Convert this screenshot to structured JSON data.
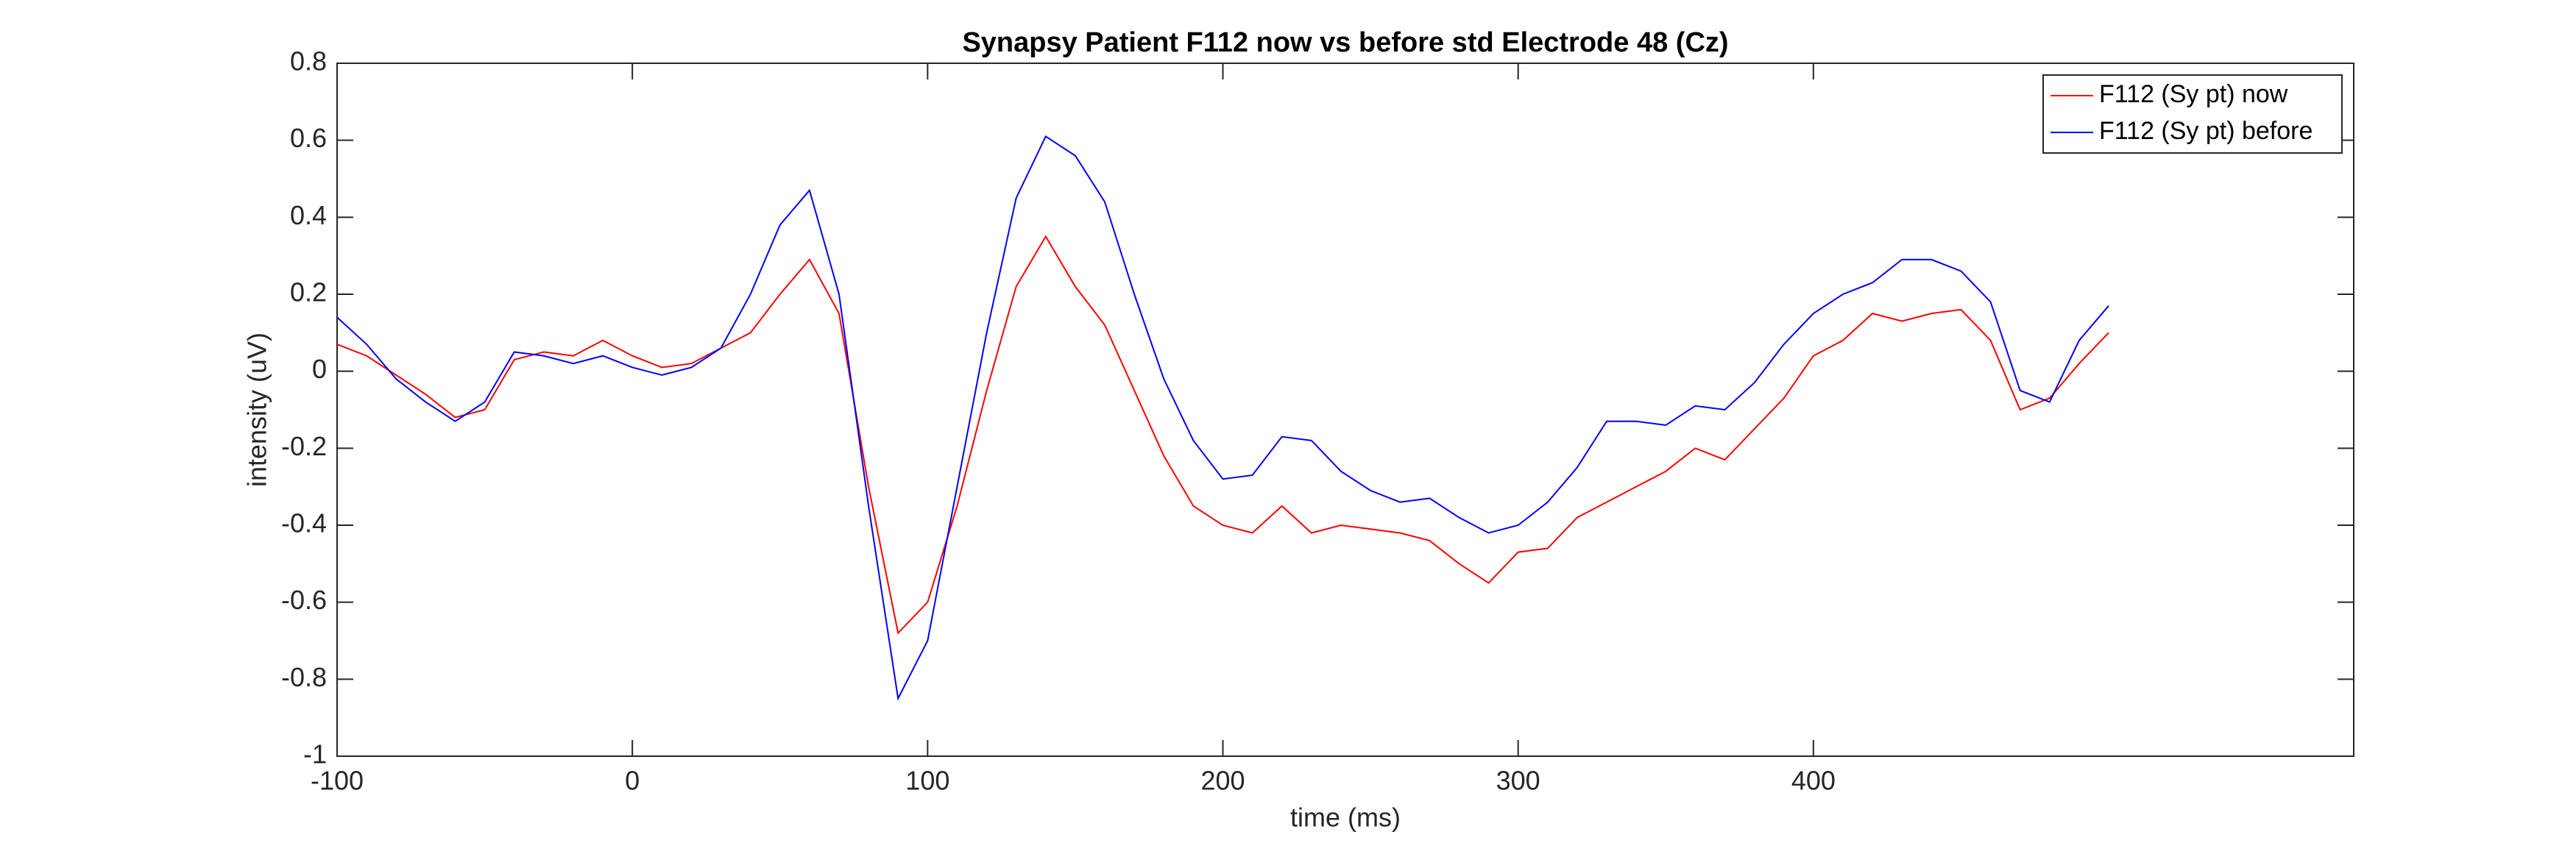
{
  "chart_data": {
    "type": "line",
    "title": "Synapsy Patient F112 now vs before std Electrode 48 (Cz)",
    "xlabel": "time (ms)",
    "ylabel": "intensity (uV)",
    "x": [
      -100,
      -90,
      -80,
      -70,
      -60,
      -50,
      -40,
      -30,
      -20,
      -10,
      0,
      10,
      20,
      30,
      40,
      50,
      60,
      70,
      80,
      90,
      100,
      110,
      120,
      130,
      140,
      150,
      160,
      170,
      180,
      190,
      200,
      210,
      220,
      230,
      240,
      250,
      260,
      270,
      280,
      290,
      300,
      310,
      320,
      330,
      340,
      350,
      360,
      370,
      380,
      390,
      400,
      410,
      420,
      430,
      440,
      450,
      460,
      470,
      480,
      490,
      500
    ],
    "series": [
      {
        "name": "F112 (Sy pt) now",
        "color": "#ff0000",
        "values": [
          0.07,
          0.04,
          -0.01,
          -0.06,
          -0.12,
          -0.1,
          0.03,
          0.05,
          0.04,
          0.08,
          0.04,
          0.01,
          0.02,
          0.06,
          0.1,
          0.2,
          0.29,
          0.15,
          -0.3,
          -0.68,
          -0.6,
          -0.35,
          -0.05,
          0.22,
          0.35,
          0.22,
          0.12,
          -0.05,
          -0.22,
          -0.35,
          -0.4,
          -0.42,
          -0.35,
          -0.42,
          -0.4,
          -0.41,
          -0.42,
          -0.44,
          -0.5,
          -0.55,
          -0.47,
          -0.46,
          -0.38,
          -0.34,
          -0.3,
          -0.26,
          -0.2,
          -0.23,
          -0.15,
          -0.07,
          0.04,
          0.08,
          0.15,
          0.13,
          0.15,
          0.16,
          0.08,
          -0.1,
          -0.07,
          0.02,
          0.1
        ]
      },
      {
        "name": "F112 (Sy pt) before",
        "color": "#0000ff",
        "values": [
          0.14,
          0.07,
          -0.02,
          -0.08,
          -0.13,
          -0.08,
          0.05,
          0.04,
          0.02,
          0.04,
          0.01,
          -0.01,
          0.01,
          0.06,
          0.2,
          0.38,
          0.47,
          0.2,
          -0.35,
          -0.85,
          -0.7,
          -0.3,
          0.1,
          0.45,
          0.61,
          0.56,
          0.44,
          0.2,
          -0.02,
          -0.18,
          -0.28,
          -0.27,
          -0.17,
          -0.18,
          -0.26,
          -0.31,
          -0.34,
          -0.33,
          -0.38,
          -0.42,
          -0.4,
          -0.34,
          -0.25,
          -0.13,
          -0.13,
          -0.14,
          -0.09,
          -0.1,
          -0.03,
          0.07,
          0.15,
          0.2,
          0.23,
          0.29,
          0.29,
          0.26,
          0.18,
          -0.05,
          -0.08,
          0.08,
          0.17
        ]
      }
    ],
    "xlim": [
      -100,
      583
    ],
    "xticks": [
      -100,
      0,
      100,
      200,
      300,
      400
    ],
    "ylim": [
      -1,
      0.8
    ],
    "yticks": [
      -1,
      -0.8,
      -0.6,
      -0.4,
      -0.2,
      0,
      0.2,
      0.4,
      0.6,
      0.8
    ],
    "grid": false,
    "legend": "upper right"
  }
}
